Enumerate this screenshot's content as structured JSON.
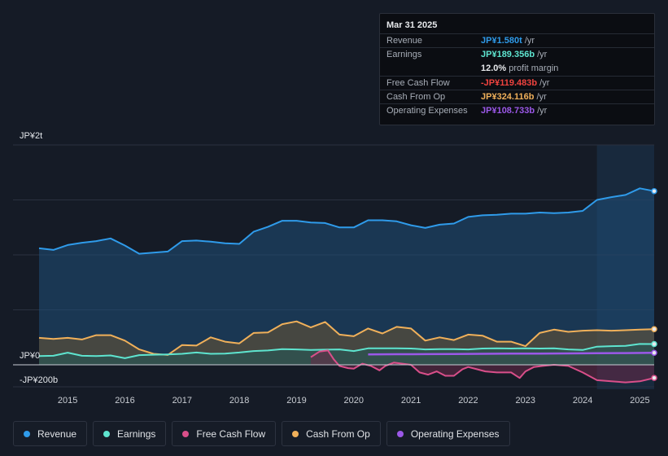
{
  "tooltip": {
    "date": "Mar 31 2025",
    "rows": [
      {
        "label": "Revenue",
        "value": "JP¥1.580t",
        "unit": " /yr",
        "color": "#2f9bea"
      },
      {
        "label": "Earnings",
        "value": "JP¥189.356b",
        "unit": " /yr",
        "color": "#5ee4cf"
      },
      {
        "label": "Free Cash Flow",
        "value": "-JP¥119.483b",
        "unit": " /yr",
        "color": "#f0433f"
      },
      {
        "label": "Cash From Op",
        "value": "JP¥324.116b",
        "unit": " /yr",
        "color": "#f0b05a"
      },
      {
        "label": "Operating Expenses",
        "value": "JP¥108.733b",
        "unit": " /yr",
        "color": "#9b58e8"
      }
    ],
    "margin_value": "12.0%",
    "margin_label": " profit margin"
  },
  "legend": [
    {
      "label": "Revenue",
      "color": "#2f9bea"
    },
    {
      "label": "Earnings",
      "color": "#5ee4cf"
    },
    {
      "label": "Free Cash Flow",
      "color": "#d94f8a"
    },
    {
      "label": "Cash From Op",
      "color": "#f0b05a"
    },
    {
      "label": "Operating Expenses",
      "color": "#9b58e8"
    }
  ],
  "chart_data": {
    "type": "line",
    "title": "",
    "unit": "JP¥ billions",
    "y_axis_labels": [
      "JP¥2t",
      "JP¥0",
      "-JP¥200b"
    ],
    "ylim": [
      -200,
      2000
    ],
    "x_ticks": [
      "2015",
      "2016",
      "2017",
      "2018",
      "2019",
      "2020",
      "2021",
      "2022",
      "2023",
      "2024",
      "2025"
    ],
    "xlim": [
      2014.5,
      2025.25
    ],
    "highlight_from": 2024.25,
    "series": [
      {
        "name": "Revenue",
        "color": "#2f9bea",
        "x": [
          2014.5,
          2014.75,
          2015.0,
          2015.25,
          2015.5,
          2015.75,
          2016.0,
          2016.25,
          2016.5,
          2016.75,
          2017.0,
          2017.25,
          2017.5,
          2017.75,
          2018.0,
          2018.25,
          2018.5,
          2018.75,
          2019.0,
          2019.25,
          2019.5,
          2019.75,
          2020.0,
          2020.25,
          2020.5,
          2020.75,
          2021.0,
          2021.25,
          2021.5,
          2021.75,
          2022.0,
          2022.25,
          2022.5,
          2022.75,
          2023.0,
          2023.25,
          2023.5,
          2023.75,
          2024.0,
          2024.25,
          2024.5,
          2024.75,
          2025.0,
          2025.25
        ],
        "values": [
          1060,
          1045,
          1090,
          1110,
          1125,
          1150,
          1085,
          1010,
          1020,
          1030,
          1125,
          1130,
          1120,
          1105,
          1100,
          1210,
          1255,
          1310,
          1310,
          1295,
          1290,
          1250,
          1250,
          1315,
          1315,
          1305,
          1270,
          1245,
          1275,
          1285,
          1345,
          1360,
          1365,
          1375,
          1375,
          1385,
          1380,
          1385,
          1400,
          1500,
          1525,
          1545,
          1605,
          1580
        ]
      },
      {
        "name": "Earnings",
        "color": "#5ee4cf",
        "x": [
          2014.5,
          2014.75,
          2015.0,
          2015.25,
          2015.5,
          2015.75,
          2016.0,
          2016.25,
          2016.5,
          2016.75,
          2017.0,
          2017.25,
          2017.5,
          2017.75,
          2018.0,
          2018.25,
          2018.5,
          2018.75,
          2019.0,
          2019.25,
          2019.5,
          2019.75,
          2020.0,
          2020.25,
          2020.5,
          2020.75,
          2021.0,
          2021.25,
          2021.5,
          2021.75,
          2022.0,
          2022.25,
          2022.5,
          2022.75,
          2023.0,
          2023.25,
          2023.5,
          2023.75,
          2024.0,
          2024.25,
          2024.5,
          2024.75,
          2025.0,
          2025.25
        ],
        "values": [
          80,
          82,
          110,
          82,
          80,
          85,
          60,
          88,
          92,
          95,
          100,
          112,
          100,
          102,
          112,
          125,
          130,
          142,
          140,
          135,
          138,
          140,
          125,
          150,
          150,
          150,
          148,
          140,
          142,
          142,
          140,
          148,
          150,
          148,
          150,
          148,
          150,
          140,
          135,
          165,
          170,
          172,
          190,
          189
        ]
      },
      {
        "name": "Free Cash Flow",
        "color": "#d94f8a",
        "x": [
          2019.25,
          2019.4,
          2019.55,
          2019.65,
          2019.75,
          2019.9,
          2020.0,
          2020.15,
          2020.3,
          2020.45,
          2020.55,
          2020.7,
          2020.85,
          2021.0,
          2021.15,
          2021.3,
          2021.45,
          2021.6,
          2021.75,
          2021.9,
          2022.0,
          2022.15,
          2022.3,
          2022.5,
          2022.75,
          2022.9,
          2023.0,
          2023.15,
          2023.3,
          2023.5,
          2023.75,
          2024.0,
          2024.25,
          2024.5,
          2024.75,
          2025.0,
          2025.25
        ],
        "values": [
          70,
          120,
          130,
          50,
          -10,
          -30,
          -35,
          10,
          -10,
          -50,
          -10,
          20,
          10,
          0,
          -70,
          -90,
          -60,
          -100,
          -100,
          -40,
          -20,
          -40,
          -60,
          -70,
          -70,
          -120,
          -60,
          -20,
          -10,
          0,
          -10,
          -70,
          -140,
          -150,
          -160,
          -150,
          -119
        ]
      },
      {
        "name": "Cash From Op",
        "color": "#f0b05a",
        "x": [
          2014.5,
          2014.75,
          2015.0,
          2015.25,
          2015.5,
          2015.75,
          2016.0,
          2016.25,
          2016.5,
          2016.75,
          2017.0,
          2017.25,
          2017.5,
          2017.75,
          2018.0,
          2018.25,
          2018.5,
          2018.75,
          2019.0,
          2019.25,
          2019.5,
          2019.75,
          2020.0,
          2020.25,
          2020.5,
          2020.75,
          2021.0,
          2021.25,
          2021.5,
          2021.75,
          2022.0,
          2022.25,
          2022.5,
          2022.75,
          2023.0,
          2023.25,
          2023.5,
          2023.75,
          2024.0,
          2024.25,
          2024.5,
          2024.75,
          2025.0,
          2025.25
        ],
        "values": [
          245,
          235,
          245,
          230,
          270,
          270,
          220,
          140,
          100,
          90,
          180,
          175,
          250,
          210,
          195,
          290,
          295,
          370,
          395,
          340,
          390,
          275,
          260,
          330,
          285,
          345,
          330,
          220,
          250,
          225,
          275,
          265,
          210,
          210,
          170,
          290,
          320,
          300,
          310,
          315,
          310,
          315,
          320,
          324
        ]
      },
      {
        "name": "Operating Expenses",
        "color": "#9b58e8",
        "x": [
          2020.25,
          2020.75,
          2021.25,
          2021.75,
          2022.25,
          2022.75,
          2023.25,
          2023.75,
          2024.25,
          2024.75,
          2025.25
        ],
        "values": [
          95,
          96,
          97,
          98,
          100,
          102,
          102,
          104,
          106,
          107,
          109
        ]
      }
    ]
  }
}
